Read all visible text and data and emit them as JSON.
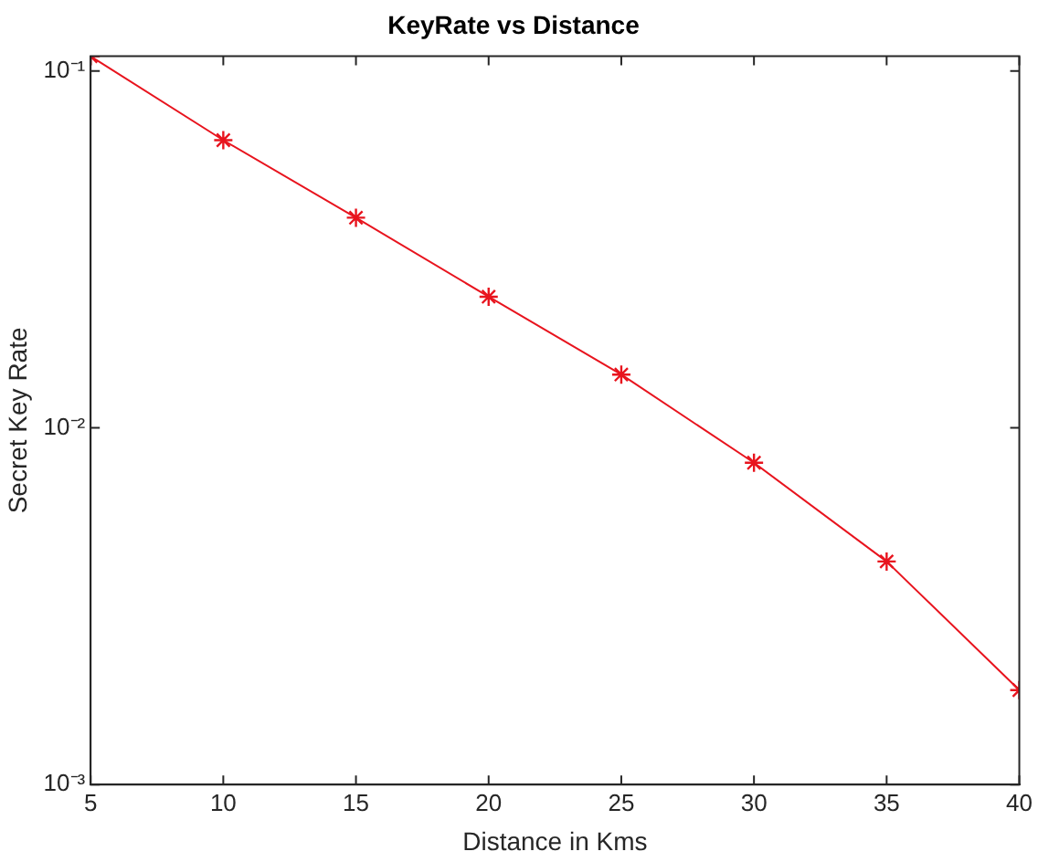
{
  "chart_data": {
    "type": "line",
    "title": "KeyRate vs Distance",
    "xlabel": "Distance in Kms",
    "ylabel": "Secret Key Rate",
    "x": [
      5,
      10,
      15,
      20,
      25,
      30,
      35,
      40
    ],
    "series": [
      {
        "color": "#e8141e",
        "values": [
          0.11,
          0.064,
          0.0388,
          0.0233,
          0.0141,
          0.00798,
          0.00422,
          0.00184
        ]
      }
    ],
    "xlim": [
      5,
      40
    ],
    "xticks": [
      5,
      10,
      15,
      20,
      25,
      30,
      35,
      40
    ],
    "ylim": [
      0.001,
      0.11
    ],
    "yticks": [
      {
        "value": 0.001,
        "label": "10⁻³"
      },
      {
        "value": 0.01,
        "label": "10⁻²"
      },
      {
        "value": 0.1,
        "label": "10⁻¹"
      }
    ],
    "log": "y",
    "grid": false,
    "legend": false,
    "marker": "cross",
    "line_style": "solid"
  }
}
